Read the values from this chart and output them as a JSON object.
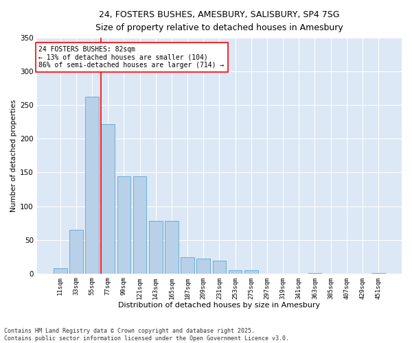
{
  "title_line1": "24, FOSTERS BUSHES, AMESBURY, SALISBURY, SP4 7SG",
  "title_line2": "Size of property relative to detached houses in Amesbury",
  "xlabel": "Distribution of detached houses by size in Amesbury",
  "ylabel": "Number of detached properties",
  "categories": [
    "11sqm",
    "33sqm",
    "55sqm",
    "77sqm",
    "99sqm",
    "121sqm",
    "143sqm",
    "165sqm",
    "187sqm",
    "209sqm",
    "231sqm",
    "253sqm",
    "275sqm",
    "297sqm",
    "319sqm",
    "341sqm",
    "363sqm",
    "385sqm",
    "407sqm",
    "429sqm",
    "451sqm"
  ],
  "values": [
    8,
    65,
    263,
    222,
    144,
    144,
    78,
    78,
    24,
    22,
    19,
    5,
    5,
    0,
    0,
    0,
    1,
    0,
    0,
    0,
    1
  ],
  "bar_color": "#b8d0e8",
  "bar_edge_color": "#6baed6",
  "background_color": "#dce8f5",
  "grid_color": "#ffffff",
  "vline_color": "red",
  "annotation_text": "24 FOSTERS BUSHES: 82sqm\n← 13% of detached houses are smaller (104)\n86% of semi-detached houses are larger (714) →",
  "annotation_box_color": "white",
  "annotation_box_edge": "red",
  "footnote": "Contains HM Land Registry data © Crown copyright and database right 2025.\nContains public sector information licensed under the Open Government Licence v3.0.",
  "ylim": [
    0,
    350
  ],
  "yticks": [
    0,
    50,
    100,
    150,
    200,
    250,
    300,
    350
  ]
}
